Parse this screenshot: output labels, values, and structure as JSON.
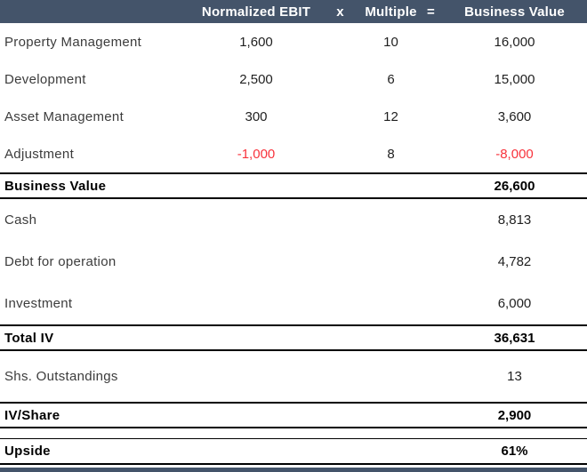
{
  "colors": {
    "header_bg": "#44546A",
    "negative_text": "#f8333c",
    "rule": "#000000"
  },
  "table": {
    "header": {
      "ebit": "Normalized EBIT",
      "multiply_sign": "x",
      "multiple": "Multiple",
      "equals_sign": "=",
      "business_value": "Business Value"
    },
    "segments": [
      {
        "label": "Property Management",
        "ebit": "1,600",
        "multiple": "10",
        "value": "16,000"
      },
      {
        "label": "Development",
        "ebit": "2,500",
        "multiple": "6",
        "value": "15,000"
      },
      {
        "label": "Asset Management",
        "ebit": "300",
        "multiple": "12",
        "value": "3,600"
      },
      {
        "label": "Adjustment",
        "ebit": "-1,000",
        "multiple": "8",
        "value": "-8,000"
      }
    ],
    "business_value_total": {
      "label": "Business Value",
      "value": "26,600"
    },
    "adjustment_items": [
      {
        "label": "Cash",
        "value": "8,813"
      },
      {
        "label": "Debt for operation",
        "value": "4,782"
      },
      {
        "label": "Investment",
        "value": "6,000"
      }
    ],
    "total_iv": {
      "label": "Total IV",
      "value": "36,631"
    },
    "shares": {
      "label": "Shs. Outstandings",
      "value": "13"
    },
    "iv_share": {
      "label": "IV/Share",
      "value": "2,900"
    },
    "upside": {
      "label": "Upside",
      "value": "61%"
    }
  }
}
